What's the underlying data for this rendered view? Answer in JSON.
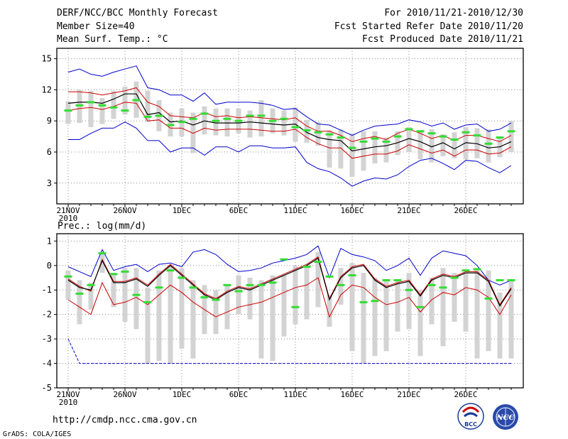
{
  "header": {
    "title": "DERF/NCC/BCC Monthly Forecast",
    "member_size": "Member Size=40",
    "variable": "Mean Surf. Temp.: °C",
    "period": "For 2010/11/21-2010/12/30",
    "started": "Fcst Started Refer Date 2010/11/20",
    "produced": "Fcst Produced Date 2010/11/21"
  },
  "footer": {
    "url": "http://cmdp.ncc.cma.gov.cn",
    "credit": "GrADS: COLA/IGES",
    "logo_bcc": "BCC",
    "logo_ncc": "NCC"
  },
  "colors": {
    "envelope_max_min": "#0000cc",
    "spread_lines": "#cc0000",
    "ensemble_mean": "#000000",
    "box": "#d3d3d3",
    "marker": "#33dd33",
    "grid": "#888888"
  },
  "chart_data": [
    {
      "type": "box",
      "title": "Mean Surf. Temp.: °C",
      "x_categories": [
        "21NOV",
        "26NOV",
        "1DEC",
        "6DEC",
        "11DEC",
        "16DEC",
        "21DEC",
        "26DEC"
      ],
      "x_sublabel": "2010",
      "days": 40,
      "ylim": [
        1,
        16
      ],
      "yticks": [
        3,
        6,
        9,
        12,
        15
      ],
      "grid": true,
      "series": {
        "max": [
          13.7,
          14.0,
          13.5,
          13.3,
          13.7,
          14.0,
          14.3,
          12.2,
          12.0,
          11.5,
          11.5,
          10.9,
          11.7,
          10.6,
          10.8,
          10.8,
          10.8,
          10.7,
          10.5,
          10.1,
          10.2,
          9.4,
          8.7,
          8.6,
          8.1,
          7.6,
          8.1,
          8.5,
          8.6,
          8.7,
          9.1,
          8.9,
          8.5,
          8.8,
          8.2,
          8.6,
          8.7,
          8.0,
          8.2,
          8.8
        ],
        "p_hi": [
          11.8,
          11.8,
          11.7,
          11.5,
          11.7,
          11.9,
          12.2,
          10.8,
          10.4,
          9.5,
          9.4,
          9.3,
          9.8,
          9.4,
          9.5,
          9.3,
          9.4,
          9.3,
          9.2,
          9.1,
          9.3,
          8.5,
          8.0,
          8.0,
          7.6,
          7.0,
          7.3,
          7.5,
          7.2,
          7.8,
          8.2,
          7.8,
          7.3,
          7.6,
          7.1,
          7.6,
          7.6,
          7.3,
          7.0,
          7.6
        ],
        "mean": [
          10.7,
          10.8,
          10.8,
          10.7,
          11.1,
          11.6,
          11.6,
          9.6,
          9.8,
          8.9,
          9.0,
          8.6,
          9.0,
          8.8,
          8.8,
          8.8,
          8.9,
          8.8,
          8.7,
          8.6,
          8.7,
          7.9,
          7.4,
          7.2,
          7.1,
          6.1,
          6.3,
          6.5,
          6.6,
          6.9,
          7.3,
          7.0,
          6.5,
          6.9,
          6.3,
          6.9,
          6.8,
          6.4,
          6.5,
          7.0
        ],
        "p_lo": [
          10.0,
          10.2,
          10.3,
          10.1,
          10.4,
          10.8,
          10.7,
          9.0,
          9.1,
          8.3,
          8.3,
          7.8,
          8.3,
          8.1,
          8.2,
          8.2,
          8.2,
          8.1,
          8.0,
          8.0,
          8.2,
          7.4,
          6.8,
          6.4,
          6.4,
          5.4,
          5.6,
          5.8,
          5.8,
          6.1,
          6.7,
          6.3,
          5.9,
          6.2,
          5.6,
          6.2,
          6.2,
          5.8,
          5.9,
          6.5
        ],
        "min": [
          7.2,
          7.2,
          7.8,
          8.3,
          8.3,
          8.9,
          8.3,
          7.1,
          7.1,
          6.0,
          6.4,
          6.4,
          5.7,
          6.5,
          6.5,
          6.0,
          6.6,
          6.6,
          6.4,
          6.4,
          6.5,
          5.0,
          4.4,
          4.1,
          3.5,
          2.7,
          3.2,
          3.5,
          3.4,
          3.8,
          4.6,
          5.2,
          5.4,
          4.9,
          4.3,
          5.2,
          5.1,
          4.5,
          4.0,
          4.7
        ],
        "box_hi": [
          10.9,
          12.0,
          11.9,
          11.2,
          11.9,
          12.3,
          12.8,
          11.9,
          11.0,
          9.8,
          10.2,
          9.8,
          10.4,
          10.2,
          10.2,
          10.2,
          10.0,
          11.0,
          10.2,
          10.0,
          10.3,
          9.1,
          8.9,
          8.1,
          8.2,
          7.8,
          8.0,
          8.0,
          7.4,
          8.0,
          8.4,
          8.1,
          8.2,
          7.7,
          7.9,
          8.4,
          8.3,
          8.2,
          7.5,
          9.0
        ],
        "box_lo": [
          8.7,
          8.8,
          8.4,
          8.7,
          9.2,
          9.6,
          9.3,
          8.9,
          8.0,
          7.5,
          7.5,
          5.9,
          7.7,
          7.6,
          7.5,
          7.8,
          7.4,
          7.5,
          7.8,
          7.6,
          7.0,
          6.9,
          6.6,
          4.5,
          4.4,
          3.6,
          4.2,
          4.9,
          5.0,
          5.7,
          6.0,
          5.3,
          5.0,
          5.6,
          5.4,
          5.3,
          5.4,
          5.0,
          5.5,
          6.0
        ],
        "marker": [
          10.0,
          10.5,
          10.8,
          10.5,
          10.3,
          10.0,
          11.0,
          9.4,
          9.5,
          8.6,
          8.9,
          9.2,
          9.7,
          9.0,
          9.2,
          9.0,
          9.5,
          9.5,
          9.0,
          9.2,
          8.4,
          8.1,
          7.9,
          7.7,
          7.4,
          6.4,
          7.0,
          7.3,
          7.0,
          7.5,
          8.2,
          8.0,
          7.8,
          7.5,
          7.2,
          7.9,
          7.6,
          6.8,
          7.4,
          8.0
        ]
      }
    },
    {
      "type": "box",
      "title": "Prec.: log(mm/d)",
      "x_categories": [
        "21NOV",
        "26NOV",
        "1DEC",
        "6DEC",
        "11DEC",
        "16DEC",
        "21DEC",
        "26DEC"
      ],
      "x_sublabel": "2010",
      "days": 40,
      "ylim": [
        -5,
        1.3
      ],
      "yticks": [
        1,
        0,
        -1,
        -2,
        -3,
        -4,
        -5
      ],
      "grid": true,
      "series": {
        "max": [
          -0.05,
          -0.25,
          -0.45,
          0.65,
          -0.2,
          -0.05,
          0.05,
          -0.25,
          0.05,
          0.1,
          -0.05,
          0.55,
          0.65,
          0.45,
          0.05,
          -0.25,
          -0.2,
          -0.1,
          0.1,
          0.2,
          0.3,
          0.45,
          0.8,
          -0.5,
          0.7,
          0.45,
          0.35,
          0.2,
          -0.2,
          0.0,
          0.3,
          -0.4,
          0.3,
          0.6,
          0.5,
          0.4,
          0.0,
          -0.6,
          -0.8,
          -0.6
        ],
        "p_hi": [
          -0.55,
          -0.85,
          -1.05,
          0.25,
          -0.65,
          -0.65,
          -0.5,
          -0.8,
          -0.35,
          0.05,
          -0.35,
          -0.75,
          -1.15,
          -1.35,
          -1.05,
          -0.85,
          -0.95,
          -0.75,
          -0.55,
          -0.35,
          -0.15,
          0.05,
          0.35,
          -1.35,
          -0.45,
          -0.05,
          0.05,
          -0.55,
          -0.85,
          -0.7,
          -0.6,
          -1.2,
          -0.55,
          -0.35,
          -0.45,
          -0.25,
          -0.25,
          -0.6,
          -1.6,
          -0.9
        ],
        "mean": [
          -0.6,
          -0.9,
          -1.0,
          0.2,
          -0.7,
          -0.7,
          -0.55,
          -0.85,
          -0.4,
          0.0,
          -0.4,
          -0.8,
          -1.2,
          -1.4,
          -1.1,
          -0.9,
          -1.0,
          -0.8,
          -0.6,
          -0.4,
          -0.2,
          0.0,
          0.3,
          -1.4,
          -0.5,
          -0.1,
          0.0,
          -0.6,
          -0.9,
          -0.75,
          -0.65,
          -1.25,
          -0.6,
          -0.4,
          -0.5,
          -0.3,
          -0.3,
          -0.65,
          -1.65,
          -0.95
        ],
        "p_lo": [
          -1.4,
          -1.7,
          -2.0,
          -0.7,
          -1.6,
          -1.5,
          -1.3,
          -1.6,
          -1.2,
          -0.8,
          -1.1,
          -1.5,
          -1.8,
          -2.1,
          -1.9,
          -1.7,
          -1.6,
          -1.5,
          -1.3,
          -1.1,
          -0.9,
          -0.8,
          -0.5,
          -2.1,
          -1.2,
          -0.8,
          -0.9,
          -1.3,
          -1.6,
          -1.5,
          -1.3,
          -1.9,
          -1.4,
          -1.1,
          -1.2,
          -0.9,
          -1.0,
          -1.3,
          -2.0,
          -1.2
        ],
        "min": [
          -3.0,
          -4.0,
          -4.0,
          -4.0,
          -4.0,
          -4.0,
          -4.0,
          -4.0,
          -4.0,
          -4.0,
          -4.0,
          -4.0,
          -4.0,
          -4.0,
          -4.0,
          -4.0,
          -4.0,
          -4.0,
          -4.0,
          -4.0,
          -4.0,
          -4.0,
          -4.0,
          -4.0,
          -4.0,
          -4.0,
          -4.0,
          -4.0,
          -4.0,
          -4.0,
          -4.0,
          -4.0,
          -4.0,
          -4.0,
          -4.0,
          -4.0,
          -4.0,
          -4.0,
          -4.0,
          -4.0
        ],
        "box_hi": [
          -0.2,
          -0.6,
          -0.7,
          0.55,
          -0.3,
          -0.1,
          -0.1,
          -0.9,
          -0.2,
          0.0,
          -0.1,
          -0.6,
          -0.8,
          -1.0,
          -0.8,
          -0.4,
          -0.5,
          -0.6,
          -0.4,
          -0.4,
          0.0,
          -0.1,
          0.55,
          -1.2,
          -0.1,
          0.1,
          -0.3,
          -0.5,
          -0.6,
          -0.6,
          -0.3,
          -1.0,
          -0.5,
          -0.1,
          -0.3,
          -0.3,
          -0.2,
          -0.2,
          -1.1,
          -0.6
        ],
        "box_lo": [
          -1.4,
          -2.4,
          -1.8,
          -0.3,
          -1.7,
          -2.3,
          -2.6,
          -4.0,
          -3.9,
          -4.0,
          -3.4,
          -3.8,
          -2.8,
          -2.8,
          -2.6,
          -2.0,
          -2.2,
          -3.8,
          -3.9,
          -2.9,
          -2.4,
          -2.2,
          -1.7,
          -2.5,
          -1.6,
          -3.5,
          -4.0,
          -3.7,
          -3.5,
          -2.7,
          -2.6,
          -3.7,
          -2.4,
          -3.3,
          -2.3,
          -2.7,
          -3.8,
          -3.5,
          -3.8,
          -3.8
        ],
        "marker": [
          -0.45,
          -1.15,
          -0.8,
          0.5,
          -0.35,
          -0.25,
          -1.2,
          -1.5,
          -0.9,
          -0.2,
          -0.5,
          -0.9,
          -1.3,
          -1.4,
          -0.8,
          -1.05,
          -0.8,
          -0.8,
          -0.7,
          0.25,
          -1.7,
          -0.05,
          0.15,
          -0.45,
          -0.8,
          -0.4,
          -1.5,
          -1.45,
          -0.6,
          -0.6,
          -1.0,
          -1.7,
          -0.8,
          -0.9,
          -0.5,
          -0.2,
          -0.15,
          -1.35,
          -0.6,
          -0.6
        ]
      }
    }
  ]
}
